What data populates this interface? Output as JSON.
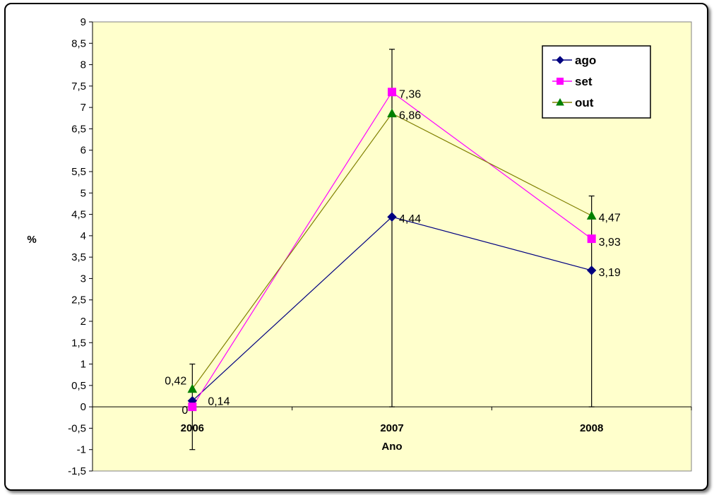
{
  "chart_data": {
    "type": "line",
    "title": "",
    "xlabel": "Ano",
    "ylabel": "%",
    "categories": [
      "2006",
      "2007",
      "2008"
    ],
    "ylim": [
      -1.5,
      9
    ],
    "ytick_step": 0.5,
    "yticks": [
      "9",
      "8,5",
      "8",
      "7,5",
      "7",
      "6,5",
      "6",
      "5,5",
      "5",
      "4,5",
      "4",
      "3,5",
      "3",
      "2,5",
      "2",
      "1,5",
      "1",
      "0,5",
      "0",
      "-0,5",
      "-1",
      "-1,5"
    ],
    "grid": false,
    "legend_position": "top-right",
    "plot_background": "#ffffcc",
    "series": [
      {
        "name": "ago",
        "color": "#000080",
        "marker": "diamond",
        "values": [
          0.14,
          4.44,
          3.19
        ],
        "labels": [
          "0,14",
          "4,44",
          "3,19"
        ]
      },
      {
        "name": "set",
        "color": "#ff00ff",
        "marker": "square",
        "values": [
          0,
          7.36,
          3.93
        ],
        "labels": [
          "0",
          "7,36",
          "3,93"
        ]
      },
      {
        "name": "out",
        "color": "#808000",
        "marker_color": "#008000",
        "marker": "triangle",
        "values": [
          0.42,
          6.86,
          4.47
        ],
        "labels": [
          "0,42",
          "6,86",
          "4,47"
        ]
      }
    ],
    "error_bars": [
      {
        "category": "2006",
        "low": -1,
        "high": 1
      },
      {
        "category": "2007",
        "low": 0,
        "high": 8.36
      },
      {
        "category": "2008",
        "low": 0,
        "high": 4.93
      }
    ]
  }
}
